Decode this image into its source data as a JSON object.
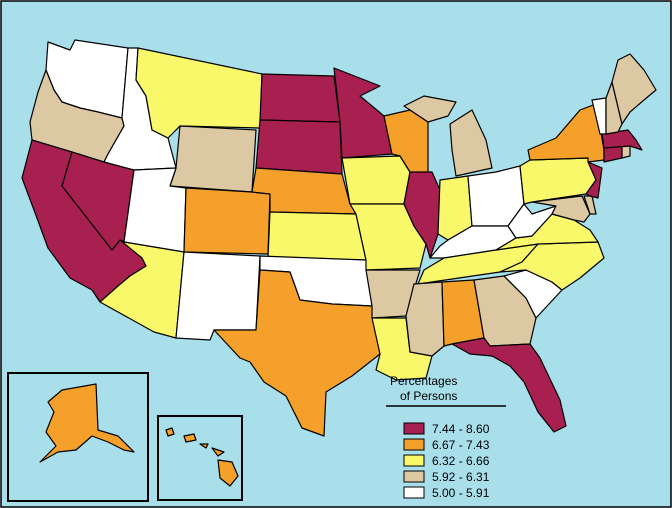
{
  "legend": {
    "title_line1": "Percentages",
    "title_line2": "of Persons",
    "classes": [
      {
        "label": "7.44 - 8.60",
        "color": "#a8204f"
      },
      {
        "label": "6.67 - 7.43",
        "color": "#f5a02a"
      },
      {
        "label": "6.32 - 6.66",
        "color": "#f8f86a"
      },
      {
        "label": "5.92 - 6.31",
        "color": "#dcc8a2"
      },
      {
        "label": "5.00 - 5.91",
        "color": "#ffffff"
      }
    ]
  },
  "colors": {
    "ocean": "#a9dfeb",
    "border": "#000000"
  },
  "states": {
    "WA": 4,
    "OR": 3,
    "CA": 0,
    "NV": 0,
    "ID": 4,
    "MT": 2,
    "WY": 3,
    "UT": 4,
    "AZ": 2,
    "CO": 1,
    "NM": 4,
    "ND": 0,
    "SD": 0,
    "NE": 1,
    "KS": 2,
    "OK": 4,
    "TX": 1,
    "MN": 0,
    "IA": 2,
    "MO": 2,
    "AR": 3,
    "LA": 2,
    "WI": 1,
    "IL": 0,
    "MI": 3,
    "IN": 2,
    "OH": 4,
    "KY": 4,
    "TN": 2,
    "MS": 3,
    "AL": 1,
    "GA": 3,
    "FL": 0,
    "SC": 4,
    "NC": 2,
    "VA": 2,
    "WV": 4,
    "MD": 3,
    "DE": 3,
    "PA": 2,
    "NJ": 0,
    "NY": 1,
    "CT": 0,
    "RI": 3,
    "MA": 0,
    "VT": 4,
    "NH": 3,
    "ME": 3,
    "AK": 1,
    "HI": 1
  }
}
